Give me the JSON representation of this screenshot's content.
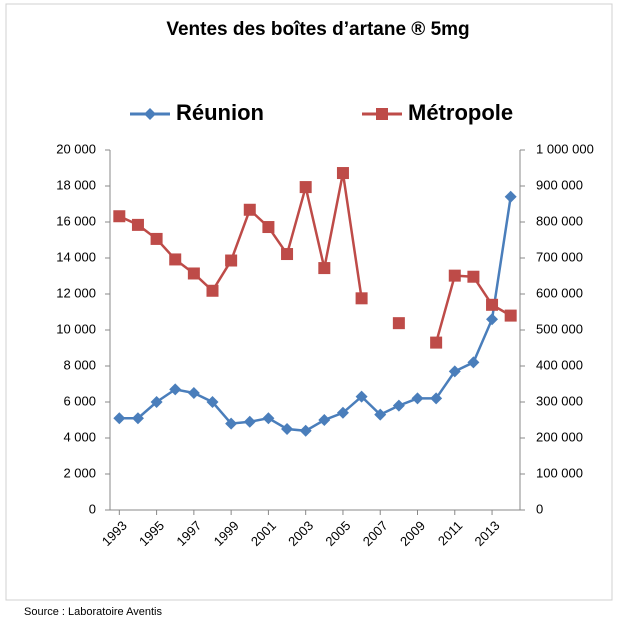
{
  "chart_data": {
    "type": "line",
    "title": "Ventes des boîtes d’artane ® 5mg",
    "source": "Source : Laboratoire Aventis",
    "x": [
      1993,
      1994,
      1995,
      1996,
      1997,
      1998,
      1999,
      2000,
      2001,
      2002,
      2003,
      2004,
      2005,
      2006,
      2007,
      2008,
      2009,
      2010,
      2011,
      2012,
      2013,
      2014
    ],
    "xlim": [
      1992.5,
      2014.5
    ],
    "xticks": [
      1993,
      1995,
      1997,
      1999,
      2001,
      2003,
      2005,
      2007,
      2009,
      2011,
      2013
    ],
    "ylim": [
      0,
      20000
    ],
    "yticks": [
      0,
      {
        "value": 2000,
        "label": "2 000"
      },
      {
        "value": 4000,
        "label": "4 000"
      },
      {
        "value": 6000,
        "label": "6 000"
      },
      {
        "value": 8000,
        "label": "8 000"
      },
      {
        "value": 10000,
        "label": "10 000"
      },
      {
        "value": 12000,
        "label": "12 000"
      },
      {
        "value": 14000,
        "label": "14 000"
      },
      {
        "value": 16000,
        "label": "16 000"
      },
      {
        "value": 18000,
        "label": "18 000"
      },
      {
        "value": 20000,
        "label": "20 000"
      }
    ],
    "y2lim": [
      0,
      1000000
    ],
    "y2ticks": [
      0,
      {
        "value": 100000,
        "label": "100 000"
      },
      {
        "value": 200000,
        "label": "200 000"
      },
      {
        "value": 300000,
        "label": "300 000"
      },
      {
        "value": 400000,
        "label": "400 000"
      },
      {
        "value": 500000,
        "label": "500 000"
      },
      {
        "value": 600000,
        "label": "600 000"
      },
      {
        "value": 700000,
        "label": "700 000"
      },
      {
        "value": 800000,
        "label": "800 000"
      },
      {
        "value": 900000,
        "label": "900 000"
      },
      {
        "value": 1000000,
        "label": "1 000 000"
      }
    ],
    "grid": false,
    "legend": "top",
    "series": [
      {
        "name": "Réunion",
        "color": "#4a7ebb",
        "marker": "diamond",
        "values": [
          5100,
          5100,
          6000,
          6700,
          6500,
          6000,
          4800,
          4900,
          5100,
          4500,
          4400,
          5000,
          5400,
          6300,
          5300,
          5800,
          6200,
          6200,
          7700,
          8200,
          10600,
          17400
        ]
      },
      {
        "name": "Métropole",
        "color": "#be4b48",
        "marker": "square",
        "axis": "y2",
        "values": [
          816000,
          792000,
          753000,
          696000,
          657000,
          609000,
          693000,
          834000,
          786000,
          711000,
          897000,
          672000,
          936000,
          588000,
          null,
          519000,
          null,
          465000,
          651000,
          648000,
          570000,
          540000
        ]
      }
    ]
  }
}
